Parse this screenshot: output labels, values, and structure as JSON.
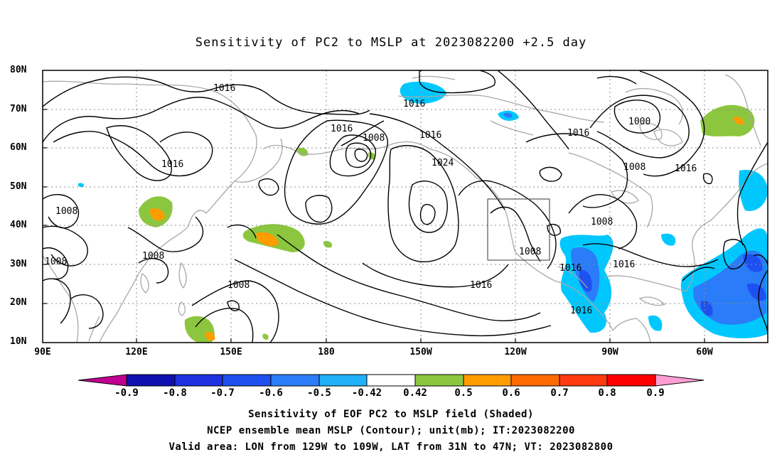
{
  "title": "Sensitivity of PC2 to MSLP at 2023082200 +2.5 day",
  "map": {
    "lat_ticks": [
      "80N",
      "70N",
      "60N",
      "50N",
      "40N",
      "30N",
      "20N",
      "10N"
    ],
    "lon_ticks": [
      "90E",
      "120E",
      "150E",
      "180",
      "150W",
      "120W",
      "90W",
      "60W"
    ],
    "contour_labels": [
      "1016",
      "1016",
      "1016",
      "1016",
      "1008",
      "1016",
      "1024",
      "1016",
      "1000",
      "1008",
      "1016",
      "1008",
      "1008",
      "1008",
      "1008",
      "1008",
      "1016",
      "1016",
      "1008",
      "1016",
      "1016"
    ],
    "valid_box": {
      "lon": [
        -129,
        -109
      ],
      "lat": [
        31,
        47
      ]
    }
  },
  "colorbar": {
    "labels": [
      "-0.9",
      "-0.8",
      "-0.7",
      "-0.6",
      "-0.5",
      "-0.42",
      "0.42",
      "0.5",
      "0.6",
      "0.7",
      "0.8",
      "0.9"
    ],
    "colors": [
      "#c00090",
      "#1010b0",
      "#1e30e0",
      "#1e50f0",
      "#2a7cf8",
      "#20b0f8",
      "#00c8ff",
      "#ffffff",
      "#8cc63f",
      "#ff9c00",
      "#ff6a00",
      "#ff3a10",
      "#ff0000",
      "#ff9ed2"
    ]
  },
  "captions": [
    "Sensitivity of EOF PC2 to MSLP field (Shaded)",
    "NCEP ensemble mean MSLP (Contour); unit(mb); IT:2023082200",
    "Valid area: LON from 129W to 109W, LAT from 31N to 47N; VT: 2023082800"
  ]
}
